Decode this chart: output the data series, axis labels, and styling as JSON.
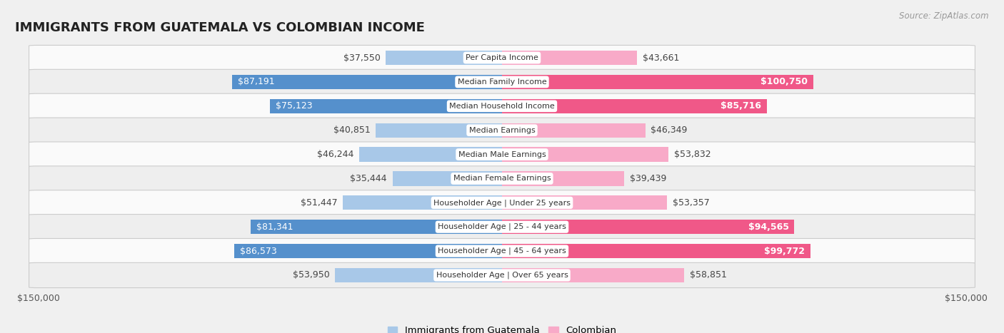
{
  "title": "IMMIGRANTS FROM GUATEMALA VS COLOMBIAN INCOME",
  "source": "Source: ZipAtlas.com",
  "categories": [
    "Per Capita Income",
    "Median Family Income",
    "Median Household Income",
    "Median Earnings",
    "Median Male Earnings",
    "Median Female Earnings",
    "Householder Age | Under 25 years",
    "Householder Age | 25 - 44 years",
    "Householder Age | 45 - 64 years",
    "Householder Age | Over 65 years"
  ],
  "guatemala_values": [
    37550,
    87191,
    75123,
    40851,
    46244,
    35444,
    51447,
    81341,
    86573,
    53950
  ],
  "colombian_values": [
    43661,
    100750,
    85716,
    46349,
    53832,
    39439,
    53357,
    94565,
    99772,
    58851
  ],
  "guatemala_labels": [
    "$37,550",
    "$87,191",
    "$75,123",
    "$40,851",
    "$46,244",
    "$35,444",
    "$51,447",
    "$81,341",
    "$86,573",
    "$53,950"
  ],
  "colombian_labels": [
    "$43,661",
    "$100,750",
    "$85,716",
    "$46,349",
    "$53,832",
    "$39,439",
    "$53,357",
    "$94,565",
    "$99,772",
    "$58,851"
  ],
  "guatemala_color_light": "#a8c8e8",
  "guatemala_color_dark": "#5590cc",
  "colombian_color_light": "#f8aac8",
  "colombian_color_dark": "#f05888",
  "max_value": 150000,
  "bar_height": 0.6,
  "bg_color": "#f0f0f0",
  "row_bg_even": "#fafafa",
  "row_bg_odd": "#eeeeee",
  "label_fontsize": 9.0,
  "title_fontsize": 13,
  "source_fontsize": 8.5,
  "category_fontsize": 8.0,
  "legend_label_guatemala": "Immigrants from Guatemala",
  "legend_label_colombian": "Colombian",
  "high_threshold_g": 65000,
  "high_threshold_c": 80000
}
